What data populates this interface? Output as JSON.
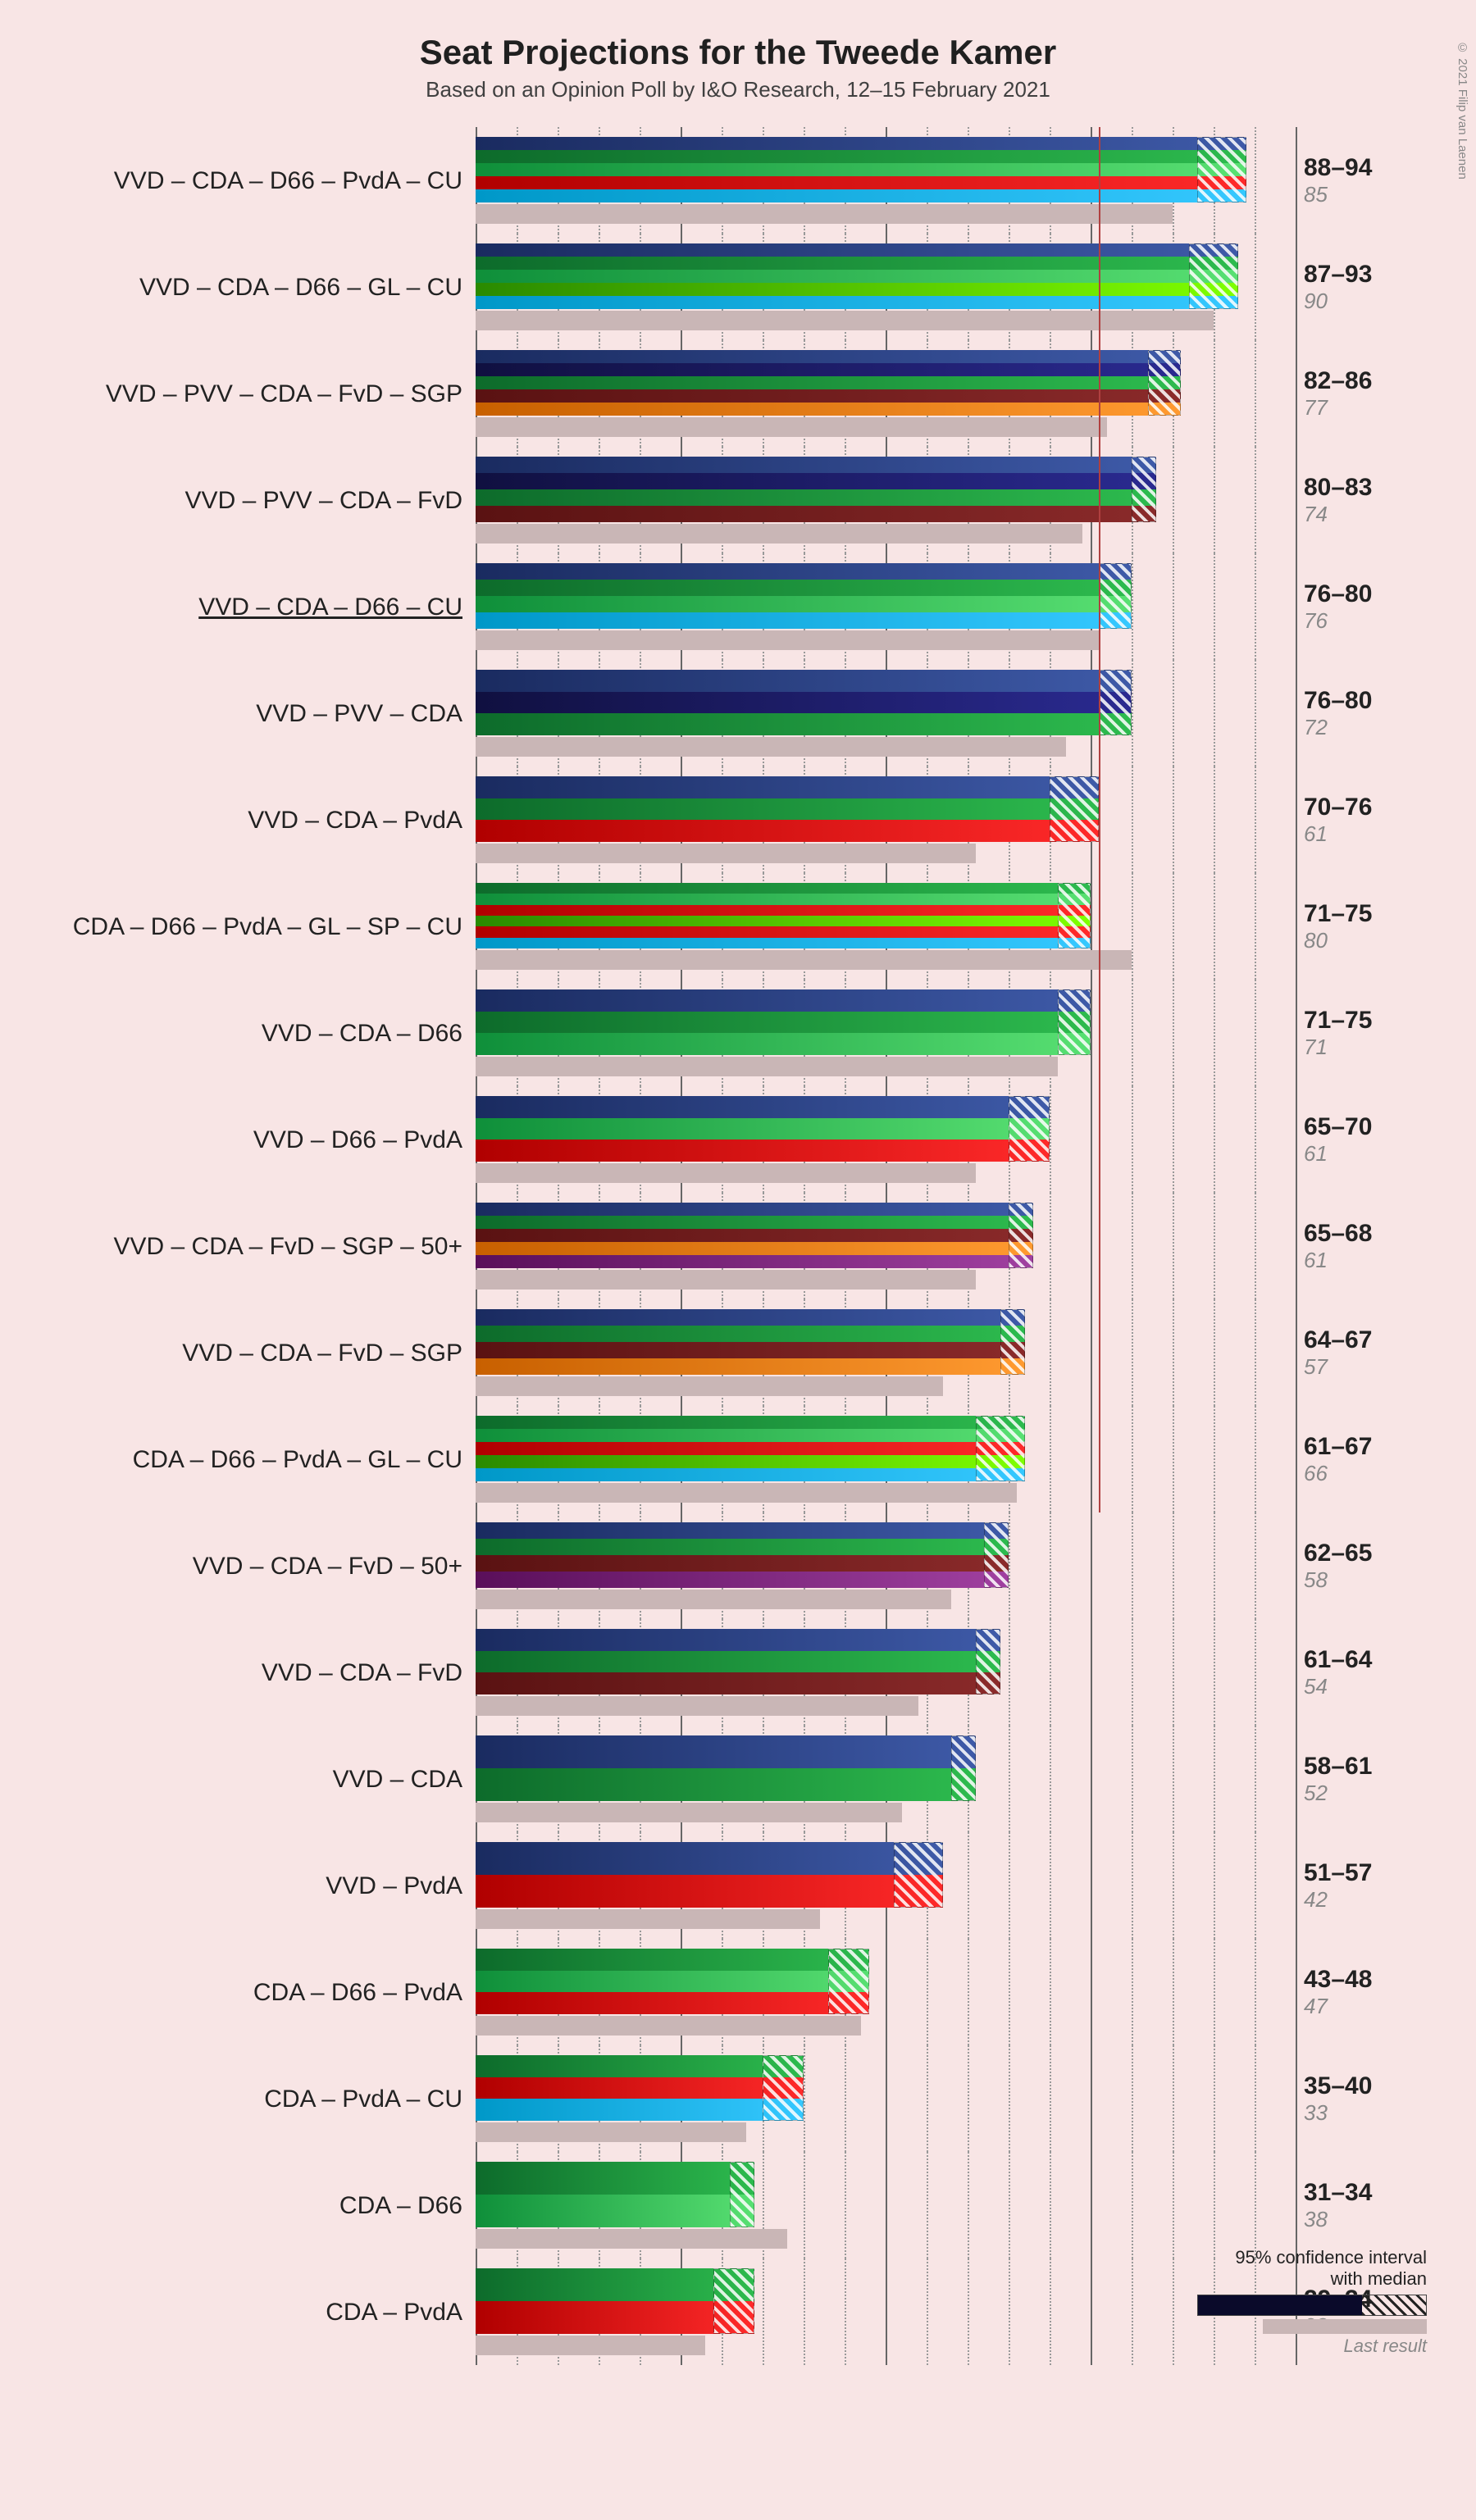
{
  "title": "Seat Projections for the Tweede Kamer",
  "subtitle": "Based on an Opinion Poll by I&O Research, 12–15 February 2021",
  "copyright": "© 2021 Filip van Laenen",
  "x_max": 100,
  "majority_line": 76,
  "grid_minor_step": 5,
  "grid_major_step": 25,
  "legend": {
    "ci_label": "95% confidence interval\nwith median",
    "last_label": "Last result"
  },
  "party_colors": {
    "VVD": {
      "from": "#1a2b60",
      "to": "#3e5aa8"
    },
    "CDA": {
      "from": "#0d6b2b",
      "to": "#2dbb4e"
    },
    "D66": {
      "from": "#0f8f3a",
      "to": "#58e072"
    },
    "PvdA": {
      "from": "#b00000",
      "to": "#ff2a2a"
    },
    "CU": {
      "from": "#0098c8",
      "to": "#35c8ff"
    },
    "GL": {
      "from": "#2a8a00",
      "to": "#7fff00"
    },
    "PVV": {
      "from": "#101040",
      "to": "#2a2a90"
    },
    "FvD": {
      "from": "#5a1212",
      "to": "#8a2a2a"
    },
    "SGP": {
      "from": "#c86000",
      "to": "#ff9a30"
    },
    "SP": {
      "from": "#b00000",
      "to": "#ff2a2a"
    },
    "50+": {
      "from": "#5a0f5a",
      "to": "#a040a0"
    }
  },
  "rows": [
    {
      "label": "VVD – CDA – D66 – PvdA – CU",
      "parties": [
        "VVD",
        "CDA",
        "D66",
        "PvdA",
        "CU"
      ],
      "low": 88,
      "high": 94,
      "last": 85,
      "underline": false
    },
    {
      "label": "VVD – CDA – D66 – GL – CU",
      "parties": [
        "VVD",
        "CDA",
        "D66",
        "GL",
        "CU"
      ],
      "low": 87,
      "high": 93,
      "last": 90,
      "underline": false
    },
    {
      "label": "VVD – PVV – CDA – FvD – SGP",
      "parties": [
        "VVD",
        "PVV",
        "CDA",
        "FvD",
        "SGP"
      ],
      "low": 82,
      "high": 86,
      "last": 77,
      "underline": false
    },
    {
      "label": "VVD – PVV – CDA – FvD",
      "parties": [
        "VVD",
        "PVV",
        "CDA",
        "FvD"
      ],
      "low": 80,
      "high": 83,
      "last": 74,
      "underline": false
    },
    {
      "label": "VVD – CDA – D66 – CU",
      "parties": [
        "VVD",
        "CDA",
        "D66",
        "CU"
      ],
      "low": 76,
      "high": 80,
      "last": 76,
      "underline": true
    },
    {
      "label": "VVD – PVV – CDA",
      "parties": [
        "VVD",
        "PVV",
        "CDA"
      ],
      "low": 76,
      "high": 80,
      "last": 72,
      "underline": false
    },
    {
      "label": "VVD – CDA – PvdA",
      "parties": [
        "VVD",
        "CDA",
        "PvdA"
      ],
      "low": 70,
      "high": 76,
      "last": 61,
      "underline": false
    },
    {
      "label": "CDA – D66 – PvdA – GL – SP – CU",
      "parties": [
        "CDA",
        "D66",
        "PvdA",
        "GL",
        "SP",
        "CU"
      ],
      "low": 71,
      "high": 75,
      "last": 80,
      "underline": false
    },
    {
      "label": "VVD – CDA – D66",
      "parties": [
        "VVD",
        "CDA",
        "D66"
      ],
      "low": 71,
      "high": 75,
      "last": 71,
      "underline": false
    },
    {
      "label": "VVD – D66 – PvdA",
      "parties": [
        "VVD",
        "D66",
        "PvdA"
      ],
      "low": 65,
      "high": 70,
      "last": 61,
      "underline": false
    },
    {
      "label": "VVD – CDA – FvD – SGP – 50+",
      "parties": [
        "VVD",
        "CDA",
        "FvD",
        "SGP",
        "50+"
      ],
      "low": 65,
      "high": 68,
      "last": 61,
      "underline": false
    },
    {
      "label": "VVD – CDA – FvD – SGP",
      "parties": [
        "VVD",
        "CDA",
        "FvD",
        "SGP"
      ],
      "low": 64,
      "high": 67,
      "last": 57,
      "underline": false
    },
    {
      "label": "CDA – D66 – PvdA – GL – CU",
      "parties": [
        "CDA",
        "D66",
        "PvdA",
        "GL",
        "CU"
      ],
      "low": 61,
      "high": 67,
      "last": 66,
      "underline": false
    },
    {
      "label": "VVD – CDA – FvD – 50+",
      "parties": [
        "VVD",
        "CDA",
        "FvD",
        "50+"
      ],
      "low": 62,
      "high": 65,
      "last": 58,
      "underline": false
    },
    {
      "label": "VVD – CDA – FvD",
      "parties": [
        "VVD",
        "CDA",
        "FvD"
      ],
      "low": 61,
      "high": 64,
      "last": 54,
      "underline": false
    },
    {
      "label": "VVD – CDA",
      "parties": [
        "VVD",
        "CDA"
      ],
      "low": 58,
      "high": 61,
      "last": 52,
      "underline": false
    },
    {
      "label": "VVD – PvdA",
      "parties": [
        "VVD",
        "PvdA"
      ],
      "low": 51,
      "high": 57,
      "last": 42,
      "underline": false
    },
    {
      "label": "CDA – D66 – PvdA",
      "parties": [
        "CDA",
        "D66",
        "PvdA"
      ],
      "low": 43,
      "high": 48,
      "last": 47,
      "underline": false
    },
    {
      "label": "CDA – PvdA – CU",
      "parties": [
        "CDA",
        "PvdA",
        "CU"
      ],
      "low": 35,
      "high": 40,
      "last": 33,
      "underline": false
    },
    {
      "label": "CDA – D66",
      "parties": [
        "CDA",
        "D66"
      ],
      "low": 31,
      "high": 34,
      "last": 38,
      "underline": false
    },
    {
      "label": "CDA – PvdA",
      "parties": [
        "CDA",
        "PvdA"
      ],
      "low": 29,
      "high": 34,
      "last": 28,
      "underline": false
    }
  ]
}
